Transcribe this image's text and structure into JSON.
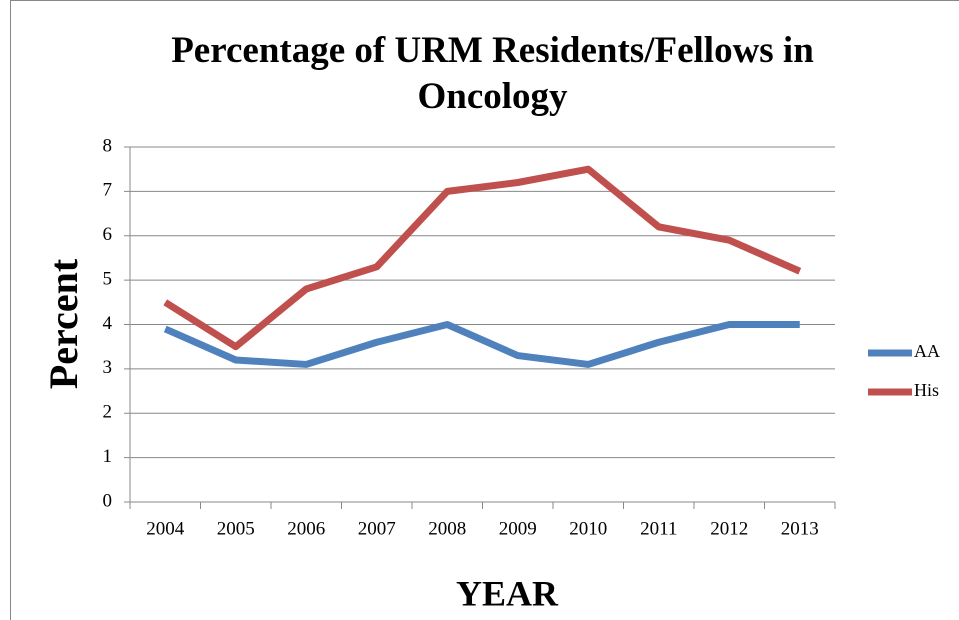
{
  "chart_data": {
    "type": "line",
    "title": "Percentage of URM Residents/Fellows in Oncology",
    "x_label": "YEAR",
    "y_label": "Percent",
    "categories": [
      "2004",
      "2005",
      "2006",
      "2007",
      "2008",
      "2009",
      "2010",
      "2011",
      "2012",
      "2013"
    ],
    "series": [
      {
        "name": "AA",
        "color": "#4f81bd",
        "values": [
          3.9,
          3.2,
          3.1,
          3.6,
          4.0,
          3.3,
          3.1,
          3.6,
          4.0,
          4.0
        ]
      },
      {
        "name": "His",
        "color": "#c0504d",
        "values": [
          4.5,
          3.5,
          4.8,
          5.3,
          7.0,
          7.2,
          7.5,
          6.2,
          5.9,
          5.2
        ]
      }
    ],
    "ylim": [
      0,
      8
    ],
    "yticks": [
      0,
      1,
      2,
      3,
      4,
      5,
      6,
      7,
      8
    ],
    "grid": true,
    "legend": "right"
  }
}
